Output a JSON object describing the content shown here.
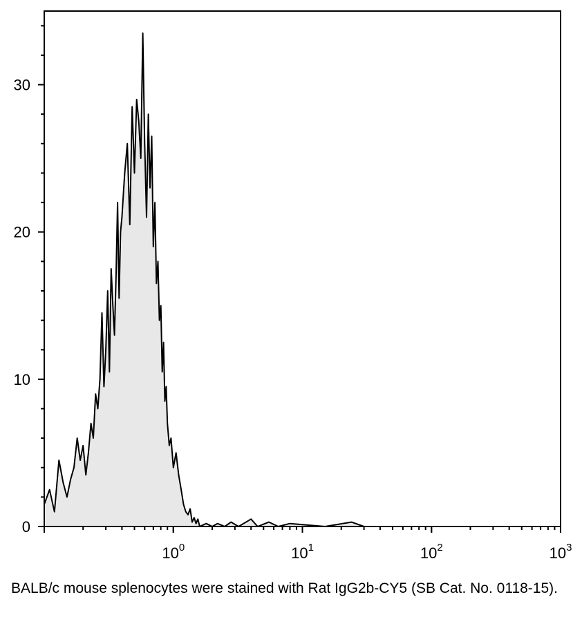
{
  "chart_data": {
    "type": "area",
    "title": "",
    "xlabel": "",
    "ylabel": "",
    "x_scale": "log",
    "xlim": [
      0.1,
      1000
    ],
    "ylim": [
      0,
      35
    ],
    "grid": false,
    "fill_color": "#e8e8e8",
    "line_color": "#000000",
    "y_ticks": [
      {
        "value": 0,
        "label": "0"
      },
      {
        "value": 10,
        "label": "10"
      },
      {
        "value": 20,
        "label": "20"
      },
      {
        "value": 30,
        "label": "30"
      }
    ],
    "x_ticks": [
      {
        "value": 1,
        "base": "10",
        "exp": "0"
      },
      {
        "value": 10,
        "base": "10",
        "exp": "1"
      },
      {
        "value": 100,
        "base": "10",
        "exp": "2"
      },
      {
        "value": 1000,
        "base": "10",
        "exp": "3"
      }
    ],
    "x": [
      0.1,
      0.11,
      0.12,
      0.13,
      0.14,
      0.15,
      0.16,
      0.17,
      0.18,
      0.19,
      0.2,
      0.21,
      0.22,
      0.23,
      0.24,
      0.25,
      0.26,
      0.27,
      0.28,
      0.29,
      0.3,
      0.31,
      0.32,
      0.33,
      0.34,
      0.35,
      0.36,
      0.37,
      0.38,
      0.39,
      0.4,
      0.42,
      0.44,
      0.46,
      0.48,
      0.5,
      0.52,
      0.54,
      0.56,
      0.58,
      0.6,
      0.62,
      0.64,
      0.66,
      0.68,
      0.7,
      0.72,
      0.74,
      0.76,
      0.78,
      0.8,
      0.82,
      0.84,
      0.86,
      0.88,
      0.9,
      0.93,
      0.96,
      1.0,
      1.05,
      1.1,
      1.15,
      1.2,
      1.25,
      1.3,
      1.35,
      1.4,
      1.45,
      1.5,
      1.55,
      1.6,
      1.8,
      2.0,
      2.2,
      2.5,
      2.8,
      3.2,
      4.0,
      4.5,
      5.5,
      6.5,
      8.0,
      15.0,
      24.0,
      30.0,
      100.0,
      1000.0
    ],
    "values": [
      1.5,
      2.5,
      1.0,
      4.5,
      3.0,
      2.0,
      3.2,
      4.0,
      6.0,
      4.5,
      5.5,
      3.5,
      5.0,
      7.0,
      6.0,
      9.0,
      8.0,
      10.0,
      14.5,
      9.5,
      12.0,
      16.0,
      10.5,
      17.5,
      15.0,
      13.0,
      17.0,
      22.0,
      15.5,
      20.0,
      21.0,
      24.0,
      26.0,
      20.5,
      28.5,
      24.0,
      29.0,
      27.5,
      25.0,
      33.5,
      26.0,
      21.0,
      28.0,
      23.0,
      26.5,
      19.0,
      22.0,
      16.5,
      18.0,
      14.0,
      15.0,
      10.5,
      12.5,
      8.5,
      9.5,
      7.0,
      5.5,
      6.0,
      4.0,
      5.0,
      3.5,
      2.5,
      1.5,
      1.0,
      0.8,
      1.2,
      0.3,
      0.6,
      0.2,
      0.5,
      0.0,
      0.2,
      0.0,
      0.2,
      0.0,
      0.3,
      0.0,
      0.5,
      0.0,
      0.3,
      0.0,
      0.2,
      0.0,
      0.3,
      0.0,
      0.0,
      0.0
    ]
  },
  "caption": "BALB/c mouse splenocytes were stained with Rat IgG2b-CY5 (SB Cat. No. 0118-15)."
}
